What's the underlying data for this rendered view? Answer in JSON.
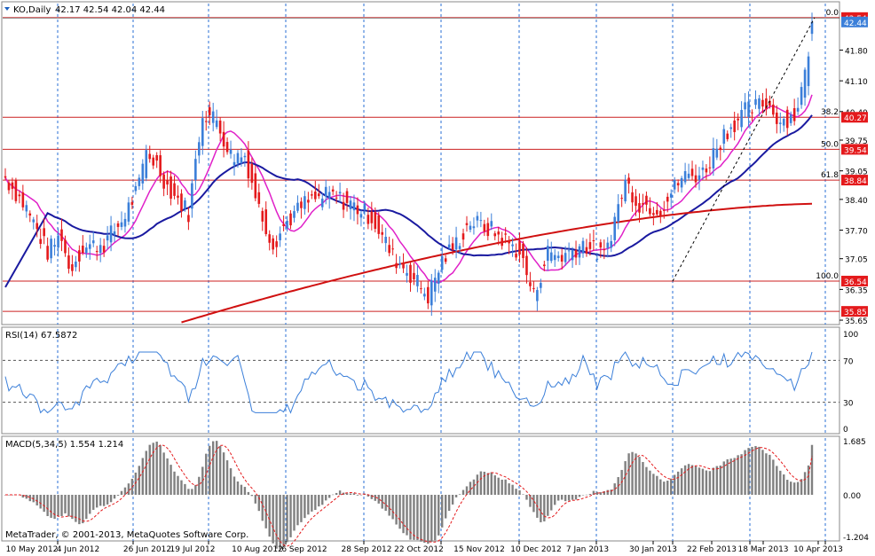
{
  "header": {
    "symbol": "KO,Daily",
    "ohlc": "42.17 42.54 42.04 42.44"
  },
  "price_axis": {
    "ticks": [
      "41.80",
      "41.10",
      "40.40",
      "39.75",
      "39.05",
      "38.40",
      "37.70",
      "37.05",
      "36.35",
      "35.65"
    ],
    "tick_values": [
      41.8,
      41.1,
      40.4,
      39.75,
      39.05,
      38.4,
      37.7,
      37.05,
      36.35,
      35.65
    ],
    "range": [
      35.55,
      42.9
    ]
  },
  "price_labels": [
    {
      "text": "42.54",
      "value": 42.54,
      "bg": "#e41a1c",
      "fg": "#ffffff"
    },
    {
      "text": "40.27",
      "value": 40.27,
      "bg": "#e41a1c",
      "fg": "#ffffff"
    },
    {
      "text": "39.54",
      "value": 39.54,
      "bg": "#e41a1c",
      "fg": "#ffffff"
    },
    {
      "text": "38.84",
      "value": 38.84,
      "bg": "#e41a1c",
      "fg": "#ffffff"
    },
    {
      "text": "36.54",
      "value": 36.54,
      "bg": "#e41a1c",
      "fg": "#ffffff"
    },
    {
      "text": "35.85",
      "value": 35.85,
      "bg": "#e41a1c",
      "fg": "#ffffff"
    },
    {
      "text": "42.44",
      "value": 42.44,
      "bg": "#3b7fd9",
      "fg": "#ffffff"
    }
  ],
  "fib": {
    "levels": [
      {
        "label": "0.0",
        "value": 42.54
      },
      {
        "label": "38.2",
        "value": 40.27
      },
      {
        "label": "50.0",
        "value": 39.54
      },
      {
        "label": "61.8",
        "value": 38.84
      },
      {
        "label": "100.0",
        "value": 36.54
      }
    ],
    "extra_line": 35.85
  },
  "x_axis": {
    "labels": [
      "10 May 2012",
      "4 Jun 2012",
      "26 Jun 2012",
      "19 Jul 2012",
      "10 Aug 2012",
      "6 Sep 2012",
      "28 Sep 2012",
      "22 Oct 2012",
      "15 Nov 2012",
      "10 Dec 2012",
      "7 Jan 2013",
      "30 Jan 2013",
      "22 Feb 2013",
      "18 Mar 2013",
      "10 Apr 2013"
    ]
  },
  "rsi": {
    "title": "RSI(14) 67.5872",
    "ticks": [
      "100",
      "70",
      "30",
      "0"
    ],
    "tick_values": [
      100,
      70,
      30,
      0
    ]
  },
  "macd": {
    "title": "MACD(5,34,5) 1.554 1.214",
    "ticks": [
      "1.685",
      "0.00",
      "-1.204"
    ],
    "tick_values": [
      1.685,
      0,
      -1.204
    ]
  },
  "copyright": "MetaTrader, © 2001-2013, MetaQuotes Software Corp.",
  "colors": {
    "bull": "#3b7fd9",
    "bear": "#e41a1c",
    "ma_fast": "#e020c8",
    "ma_mid": "#1a1aa0",
    "ma_slow": "#d01010",
    "grid": "#2a6fd6",
    "fib_line": "#cc2020",
    "indicator": "#3b7fd9",
    "signal": "#e41a1c",
    "hist": "#808080"
  },
  "chart_data": {
    "type": "candlestick",
    "price_key": [
      {
        "x": "10 May 2012",
        "price": 38.8
      },
      {
        "x": "4 Jun 2012",
        "price": 37.1
      },
      {
        "x": "26 Jun 2012",
        "price": 39.4
      },
      {
        "x": "19 Jul 2012",
        "price": 40.4
      },
      {
        "x": "10 Aug 2012",
        "price": 39.2
      },
      {
        "x": "6 Sep 2012",
        "price": 37.8
      },
      {
        "x": "28 Sep 2012",
        "price": 38.3
      },
      {
        "x": "22 Oct 2012",
        "price": 37.1
      },
      {
        "x": "15 Nov 2012",
        "price": 36.1
      },
      {
        "x": "10 Dec 2012",
        "price": 36.2
      },
      {
        "x": "7 Jan 2013",
        "price": 37.2
      },
      {
        "x": "30 Jan 2013",
        "price": 38.8
      },
      {
        "x": "22 Feb 2013",
        "price": 38.9
      },
      {
        "x": "18 Mar 2013",
        "price": 40.5
      },
      {
        "x": "10 Apr 2013",
        "price": 42.44
      }
    ]
  }
}
